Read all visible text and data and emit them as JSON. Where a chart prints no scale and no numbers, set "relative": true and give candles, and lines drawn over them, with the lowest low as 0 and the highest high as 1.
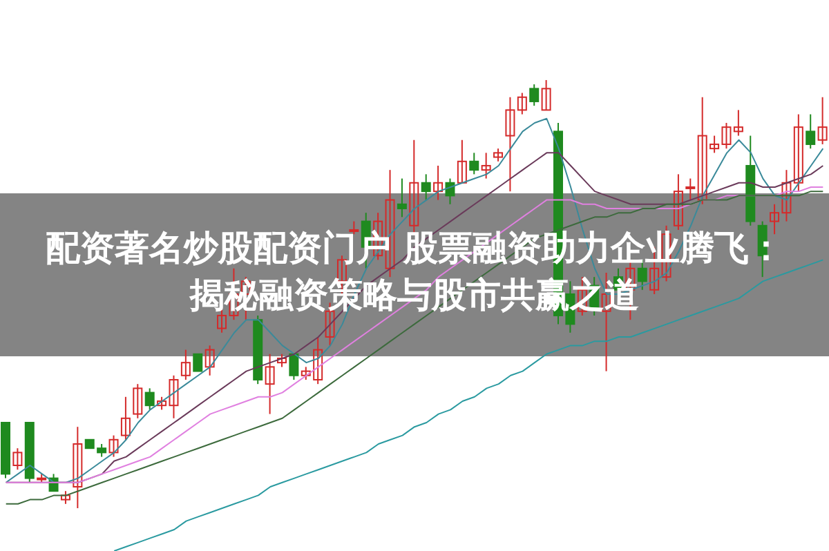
{
  "chart_data": {
    "type": "candlestick",
    "title": "配资著名炒股配资门户 股票融资助力企业腾飞：",
    "subtitle": "揭秘融资策略与股市共赢之道",
    "relative": true,
    "categories": [
      null,
      null,
      null,
      null,
      null,
      null,
      null,
      null,
      null,
      null,
      null,
      null,
      null,
      null,
      null,
      null,
      null,
      null,
      null,
      null,
      null,
      null,
      null,
      null,
      null,
      null,
      null,
      null,
      null,
      null,
      null,
      null,
      null,
      null,
      null,
      null,
      null,
      null,
      null,
      null,
      null,
      null,
      null,
      null,
      null,
      null,
      null,
      null,
      null,
      null,
      null,
      null,
      null,
      null,
      null,
      null,
      null,
      null,
      null,
      null,
      null,
      null,
      null,
      null,
      null,
      null,
      null,
      null,
      null
    ],
    "ohlc": [
      [
        0.2,
        0.2,
        0.07,
        0.08
      ],
      [
        0.1,
        0.14,
        0.09,
        0.13
      ],
      [
        0.2,
        0.2,
        0.06,
        0.07
      ],
      [
        0.07,
        0.08,
        0.06,
        0.07
      ],
      [
        0.07,
        0.08,
        0.04,
        0.04
      ],
      [
        0.02,
        0.04,
        0.01,
        0.03
      ],
      [
        0.05,
        0.19,
        0,
        0.15
      ],
      [
        0.16,
        0.16,
        0.14,
        0.14
      ],
      [
        0.14,
        0.15,
        0.12,
        0.13
      ],
      [
        0.13,
        0.17,
        0.12,
        0.16
      ],
      [
        0.17,
        0.26,
        0.16,
        0.21
      ],
      [
        0.22,
        0.29,
        0.21,
        0.28
      ],
      [
        0.27,
        0.28,
        0.23,
        0.24
      ],
      [
        0.24,
        0.26,
        0.23,
        0.25
      ],
      [
        0.24,
        0.31,
        0.21,
        0.3
      ],
      [
        0.31,
        0.37,
        0.3,
        0.34
      ],
      [
        0.36,
        0.36,
        0.32,
        0.32
      ],
      [
        0.33,
        0.38,
        0.31,
        0.37
      ],
      [
        0.42,
        0.47,
        0.41,
        0.45
      ],
      [
        0.45,
        0.56,
        0.44,
        0.5
      ],
      [
        0.5,
        0.54,
        0.44,
        0.53
      ],
      [
        0.44,
        0.45,
        0.29,
        0.3
      ],
      [
        0.29,
        0.36,
        0.22,
        0.33
      ],
      [
        0.34,
        0.36,
        0.33,
        0.35
      ],
      [
        0.36,
        0.36,
        0.3,
        0.31
      ],
      [
        0.31,
        0.33,
        0.3,
        0.32
      ],
      [
        0.3,
        0.4,
        0.29,
        0.37
      ],
      [
        0.4,
        0.48,
        0.38,
        0.46
      ],
      [
        0.53,
        0.59,
        0.5,
        0.58
      ],
      [
        0.65,
        0.67,
        0.64,
        0.65
      ],
      [
        0.67,
        0.69,
        0.56,
        0.61
      ],
      [
        0.59,
        0.69,
        0.58,
        0.67
      ],
      [
        0.56,
        0.79,
        0.54,
        0.72
      ],
      [
        0.71,
        0.77,
        0.68,
        0.7
      ],
      [
        0.66,
        0.86,
        0.64,
        0.76
      ],
      [
        0.76,
        0.78,
        0.72,
        0.74
      ],
      [
        0.74,
        0.8,
        0.72,
        0.76
      ],
      [
        0.76,
        0.77,
        0.71,
        0.73
      ],
      [
        0.76,
        0.86,
        0.76,
        0.81
      ],
      [
        0.81,
        0.83,
        0.78,
        0.79
      ],
      [
        0.79,
        0.83,
        0.77,
        0.8
      ],
      [
        0.82,
        0.84,
        0.81,
        0.83
      ],
      [
        0.87,
        0.96,
        0.74,
        0.93
      ],
      [
        0.93,
        0.97,
        0.92,
        0.96
      ],
      [
        0.98,
        0.99,
        0.94,
        0.95
      ],
      [
        0.93,
        1,
        0.93,
        0.98
      ],
      [
        0.88,
        0.9,
        0.43,
        0.45
      ],
      [
        0.5,
        0.53,
        0.41,
        0.43
      ],
      [
        0.46,
        0.54,
        0.45,
        0.51
      ],
      [
        0.52,
        0.54,
        0.45,
        0.47
      ],
      [
        0.46,
        0.55,
        0.32,
        0.5
      ],
      [
        0.54,
        0.56,
        0.5,
        0.51
      ],
      [
        0.51,
        0.58,
        0.44,
        0.56
      ],
      [
        0.56,
        0.58,
        0.51,
        0.53
      ],
      [
        0.51,
        0.61,
        0.5,
        0.56
      ],
      [
        0.54,
        0.66,
        0.53,
        0.64
      ],
      [
        0.66,
        0.78,
        0.65,
        0.74
      ],
      [
        0.75,
        0.77,
        0.72,
        0.75
      ],
      [
        0.72,
        0.96,
        0.71,
        0.87
      ],
      [
        0.84,
        0.87,
        0.83,
        0.85
      ],
      [
        0.85,
        0.9,
        0.84,
        0.89
      ],
      [
        0.88,
        0.93,
        0.87,
        0.89
      ],
      [
        0.8,
        0.87,
        0.66,
        0.67
      ],
      [
        0.66,
        0.67,
        0.54,
        0.59
      ],
      [
        0.67,
        0.71,
        0.64,
        0.69
      ],
      [
        0.69,
        0.79,
        0.67,
        0.76
      ],
      [
        0.76,
        0.92,
        0.74,
        0.89
      ],
      [
        0.88,
        0.92,
        0.84,
        0.85
      ],
      [
        0.86,
        0.96,
        0.85,
        0.89
      ]
    ],
    "series": [
      {
        "type": "line",
        "color": "#3a8a9a",
        "values": [
          0.06,
          0.08,
          0.1,
          0.08,
          0.06,
          0.06,
          0.07,
          0.09,
          0.11,
          0.13,
          0.16,
          0.2,
          0.23,
          0.25,
          0.27,
          0.29,
          0.31,
          0.33,
          0.37,
          0.41,
          0.44,
          0.44,
          0.41,
          0.38,
          0.36,
          0.34,
          0.35,
          0.38,
          0.43,
          0.5,
          0.56,
          0.6,
          0.64,
          0.67,
          0.7,
          0.72,
          0.74,
          0.75,
          0.76,
          0.77,
          0.78,
          0.8,
          0.84,
          0.88,
          0.9,
          0.91,
          0.84,
          0.75,
          0.65,
          0.56,
          0.5,
          0.5,
          0.51,
          0.52,
          0.53,
          0.55,
          0.6,
          0.66,
          0.73,
          0.78,
          0.83,
          0.86,
          0.83,
          0.77,
          0.73,
          0.72,
          0.76,
          0.8,
          0.84
        ]
      },
      {
        "type": "line",
        "color": "#6a3a5a",
        "values": [
          0.06,
          0.06,
          0.06,
          0.06,
          0.06,
          0.06,
          0.06,
          0.07,
          0.08,
          0.11,
          0.12,
          0.14,
          0.16,
          0.18,
          0.2,
          0.22,
          0.24,
          0.26,
          0.28,
          0.3,
          0.32,
          0.33,
          0.34,
          0.35,
          0.36,
          0.38,
          0.4,
          0.43,
          0.46,
          0.49,
          0.52,
          0.54,
          0.56,
          0.58,
          0.61,
          0.63,
          0.65,
          0.67,
          0.69,
          0.71,
          0.73,
          0.75,
          0.77,
          0.79,
          0.81,
          0.83,
          0.83,
          0.8,
          0.77,
          0.74,
          0.73,
          0.72,
          0.71,
          0.71,
          0.71,
          0.71,
          0.71,
          0.72,
          0.73,
          0.74,
          0.75,
          0.76,
          0.76,
          0.75,
          0.75,
          0.76,
          0.77,
          0.78,
          0.8
        ]
      },
      {
        "type": "line",
        "color": "#e080e0",
        "values": [
          0.06,
          0.06,
          0.06,
          0.06,
          0.06,
          0.06,
          0.06,
          0.07,
          0.08,
          0.09,
          0.1,
          0.11,
          0.12,
          0.14,
          0.16,
          0.18,
          0.2,
          0.22,
          0.23,
          0.24,
          0.25,
          0.26,
          0.26,
          0.27,
          0.29,
          0.31,
          0.33,
          0.35,
          0.37,
          0.39,
          0.41,
          0.43,
          0.45,
          0.47,
          0.49,
          0.51,
          0.54,
          0.56,
          0.58,
          0.6,
          0.62,
          0.64,
          0.66,
          0.68,
          0.7,
          0.72,
          0.72,
          0.72,
          0.71,
          0.71,
          0.7,
          0.7,
          0.7,
          0.7,
          0.7,
          0.7,
          0.7,
          0.71,
          0.72,
          0.72,
          0.73,
          0.73,
          0.73,
          0.73,
          0.73,
          0.74,
          0.74,
          0.75,
          0.75
        ]
      },
      {
        "type": "line",
        "color": "#3c6a3c",
        "values": [
          0.01,
          0.01,
          0.02,
          0.02,
          0.03,
          0.03,
          0.04,
          0.05,
          0.06,
          0.07,
          0.08,
          0.09,
          0.1,
          0.11,
          0.12,
          0.13,
          0.14,
          0.15,
          0.16,
          0.17,
          0.18,
          0.19,
          0.2,
          0.21,
          0.23,
          0.25,
          0.27,
          0.29,
          0.31,
          0.33,
          0.35,
          0.37,
          0.39,
          0.41,
          0.43,
          0.45,
          0.47,
          0.49,
          0.51,
          0.53,
          0.55,
          0.57,
          0.59,
          0.61,
          0.63,
          0.64,
          0.65,
          0.66,
          0.67,
          0.68,
          0.68,
          0.69,
          0.69,
          0.7,
          0.7,
          0.71,
          0.71,
          0.71,
          0.72,
          0.72,
          0.72,
          0.73,
          0.73,
          0.73,
          0.73,
          0.73,
          0.73,
          0.74,
          0.74
        ]
      },
      {
        "type": "line",
        "color": "#2a9aa0",
        "values": [
          null,
          null,
          null,
          null,
          null,
          null,
          null,
          null,
          null,
          -0.1,
          -0.09,
          -0.08,
          -0.07,
          -0.06,
          -0.05,
          -0.03,
          -0.02,
          -0.01,
          0,
          0.01,
          0.02,
          0.03,
          0.05,
          0.06,
          0.07,
          0.08,
          0.09,
          0.1,
          0.11,
          0.12,
          0.13,
          0.15,
          0.16,
          0.17,
          0.19,
          0.2,
          0.22,
          0.23,
          0.25,
          0.26,
          0.28,
          0.29,
          0.31,
          0.32,
          0.34,
          0.36,
          0.37,
          0.38,
          0.38,
          0.39,
          0.39,
          0.4,
          0.4,
          0.41,
          0.42,
          0.43,
          0.44,
          0.45,
          0.46,
          0.47,
          0.48,
          0.49,
          0.51,
          0.53,
          0.54,
          0.55,
          0.56,
          0.57,
          0.58
        ]
      }
    ]
  }
}
